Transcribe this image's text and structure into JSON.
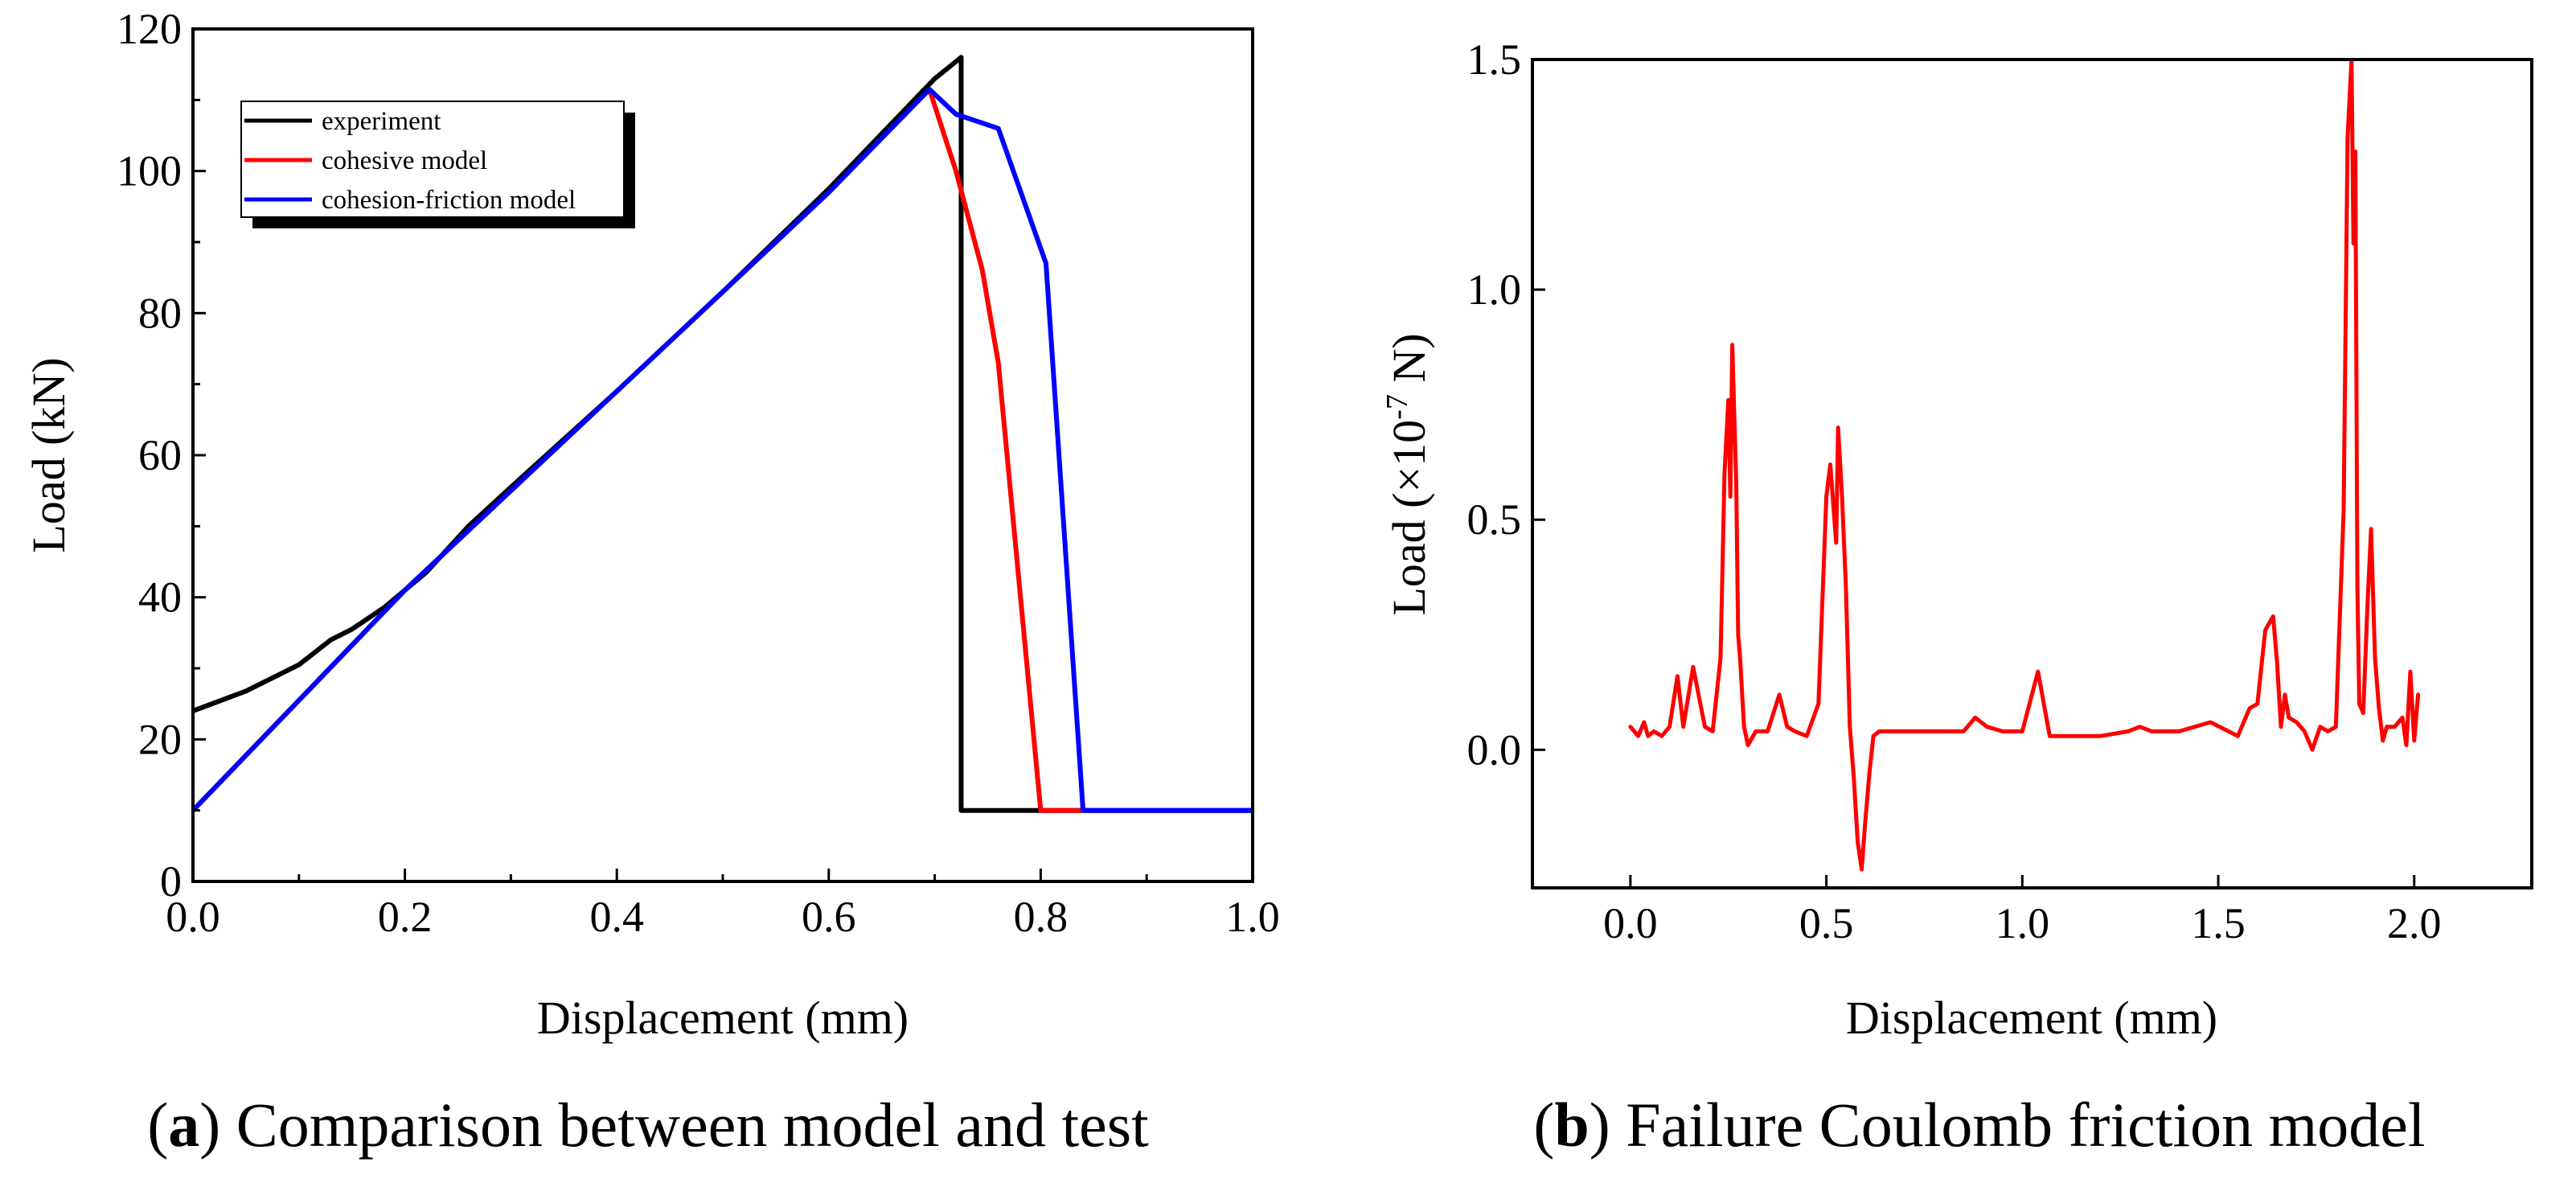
{
  "colors": {
    "experiment": "#000000",
    "cohesive": "#ff0000",
    "friction": "#0000ff",
    "failure": "#ff0000"
  },
  "panel_a": {
    "caption_letter": "a",
    "caption_text": "Comparison between model and test"
  },
  "panel_b": {
    "caption_letter": "b",
    "caption_text": "Failure Coulomb friction model",
    "ylabel_main": "Load (×10",
    "ylabel_exp": "-7",
    "ylabel_unit": " N)"
  },
  "chart_data": [
    {
      "type": "line",
      "title": "",
      "xlabel": "Displacement (mm)",
      "ylabel": "Load (kN)",
      "xlim": [
        0.0,
        1.0
      ],
      "ylim": [
        0,
        120
      ],
      "xticks": [
        0.0,
        0.2,
        0.4,
        0.6,
        0.8,
        1.0
      ],
      "xtick_labels": [
        "0.0",
        "0.2",
        "0.4",
        "0.6",
        "0.8",
        "1.0"
      ],
      "yticks": [
        0,
        20,
        40,
        60,
        80,
        100,
        120
      ],
      "ytick_labels": [
        "0",
        "20",
        "40",
        "60",
        "80",
        "100",
        "120"
      ],
      "legend_position": "top-left",
      "series": [
        {
          "name": "experiment",
          "color_key": "experiment",
          "x": [
            0.0,
            0.05,
            0.1,
            0.13,
            0.15,
            0.18,
            0.22,
            0.26,
            0.3,
            0.4,
            0.5,
            0.6,
            0.7,
            0.725,
            0.725,
            1.0
          ],
          "y": [
            24,
            26.8,
            30.5,
            34,
            35.5,
            38.5,
            43.5,
            50,
            55.5,
            69,
            83,
            97.5,
            113,
            116,
            10,
            10
          ]
        },
        {
          "name": "cohesive model",
          "color_key": "cohesive",
          "x": [
            0.0,
            0.1,
            0.2,
            0.3,
            0.4,
            0.5,
            0.6,
            0.695,
            0.72,
            0.745,
            0.76,
            0.8,
            0.84
          ],
          "y": [
            10,
            25.5,
            41,
            55,
            69,
            83,
            97,
            111.5,
            100,
            86,
            73,
            10,
            10
          ]
        },
        {
          "name": "cohesion-friction model",
          "color_key": "friction",
          "x": [
            0.0,
            0.1,
            0.2,
            0.3,
            0.4,
            0.5,
            0.6,
            0.695,
            0.72,
            0.76,
            0.805,
            0.84,
            1.0
          ],
          "y": [
            10,
            25.5,
            41,
            55,
            69,
            83,
            97,
            111.5,
            108,
            106,
            87,
            10,
            10
          ]
        }
      ]
    },
    {
      "type": "line",
      "title": "",
      "xlabel": "Displacement (mm)",
      "ylabel": "Load (×10-7 N)",
      "xlim": [
        -0.25,
        2.3
      ],
      "ylim": [
        -0.3,
        1.5
      ],
      "xticks": [
        0.0,
        0.5,
        1.0,
        1.5,
        2.0
      ],
      "xtick_labels": [
        "0.0",
        "0.5",
        "1.0",
        "1.5",
        "2.0"
      ],
      "yticks": [
        0.0,
        0.5,
        1.0,
        1.5
      ],
      "ytick_labels": [
        "0.0",
        "0.5",
        "1.0",
        "1.5"
      ],
      "series": [
        {
          "name": "failure Coulomb friction",
          "color_key": "failure",
          "x": [
            0.0,
            0.02,
            0.035,
            0.045,
            0.06,
            0.08,
            0.1,
            0.12,
            0.135,
            0.16,
            0.19,
            0.21,
            0.23,
            0.24,
            0.25,
            0.255,
            0.26,
            0.27,
            0.275,
            0.28,
            0.29,
            0.3,
            0.32,
            0.35,
            0.38,
            0.4,
            0.42,
            0.45,
            0.48,
            0.5,
            0.51,
            0.525,
            0.53,
            0.54,
            0.55,
            0.56,
            0.57,
            0.58,
            0.59,
            0.6,
            0.61,
            0.62,
            0.635,
            0.65,
            0.7,
            0.8,
            0.85,
            0.88,
            0.91,
            0.95,
            1.0,
            1.04,
            1.07,
            1.1,
            1.2,
            1.27,
            1.3,
            1.33,
            1.4,
            1.48,
            1.55,
            1.58,
            1.6,
            1.62,
            1.64,
            1.65,
            1.66,
            1.67,
            1.68,
            1.7,
            1.72,
            1.74,
            1.76,
            1.78,
            1.8,
            1.82,
            1.83,
            1.84,
            1.845,
            1.85,
            1.855,
            1.86,
            1.87,
            1.88,
            1.89,
            1.9,
            1.91,
            1.92,
            1.93,
            1.95,
            1.97,
            1.98,
            1.99,
            2.0,
            2.01
          ],
          "y": [
            0.05,
            0.03,
            0.06,
            0.03,
            0.04,
            0.03,
            0.05,
            0.16,
            0.05,
            0.18,
            0.05,
            0.04,
            0.2,
            0.6,
            0.76,
            0.55,
            0.88,
            0.58,
            0.25,
            0.2,
            0.05,
            0.01,
            0.04,
            0.04,
            0.12,
            0.05,
            0.04,
            0.03,
            0.1,
            0.55,
            0.62,
            0.45,
            0.7,
            0.55,
            0.35,
            0.05,
            -0.06,
            -0.2,
            -0.26,
            -0.15,
            -0.05,
            0.03,
            0.04,
            0.04,
            0.04,
            0.04,
            0.04,
            0.07,
            0.05,
            0.04,
            0.04,
            0.17,
            0.03,
            0.03,
            0.03,
            0.04,
            0.05,
            0.04,
            0.04,
            0.06,
            0.03,
            0.09,
            0.1,
            0.26,
            0.29,
            0.19,
            0.05,
            0.12,
            0.07,
            0.06,
            0.04,
            0.0,
            0.05,
            0.04,
            0.05,
            0.52,
            1.33,
            1.5,
            1.1,
            1.3,
            0.35,
            0.1,
            0.08,
            0.3,
            0.48,
            0.2,
            0.09,
            0.02,
            0.05,
            0.05,
            0.07,
            0.01,
            0.17,
            0.02,
            0.12
          ]
        }
      ]
    }
  ]
}
